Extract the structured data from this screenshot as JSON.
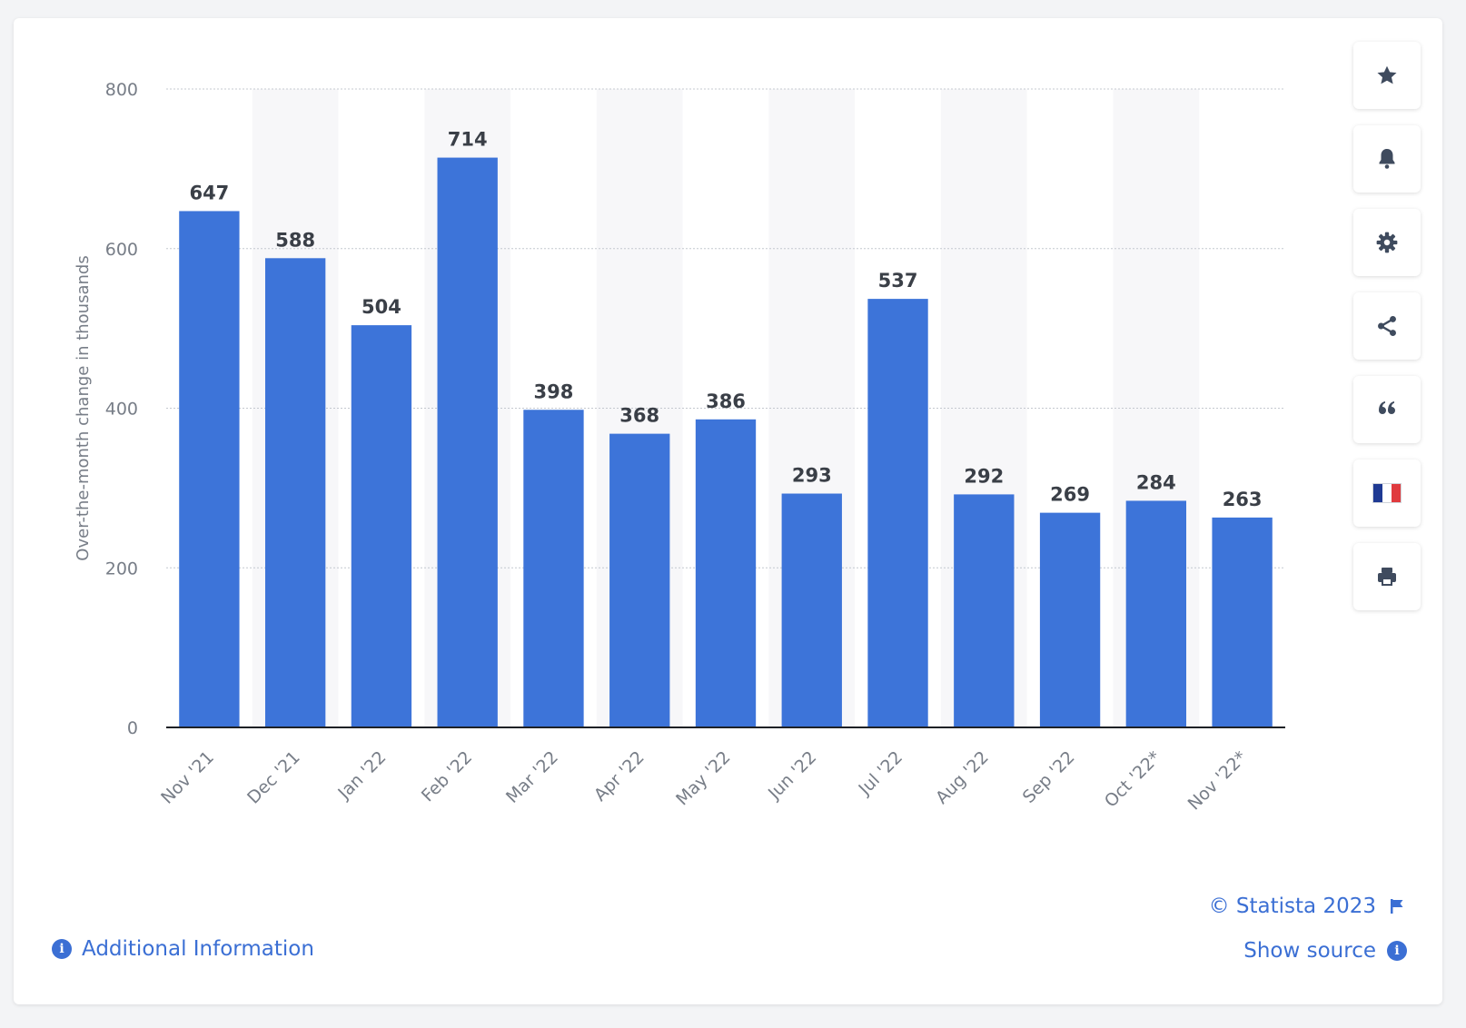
{
  "chart_data": {
    "type": "bar",
    "categories": [
      "Nov '21",
      "Dec '21",
      "Jan '22",
      "Feb '22",
      "Mar '22",
      "Apr '22",
      "May '22",
      "Jun '22",
      "Jul '22",
      "Aug '22",
      "Sep '22",
      "Oct '22*",
      "Nov '22*"
    ],
    "values": [
      647,
      588,
      504,
      714,
      398,
      368,
      386,
      293,
      537,
      292,
      269,
      284,
      263
    ],
    "ylabel": "Over-the-month change in thousands",
    "ylim": [
      0,
      800
    ],
    "yticks": [
      0,
      200,
      400,
      600,
      800
    ],
    "grid": true,
    "bar_color": "#3d74d9"
  },
  "toolbar": {
    "buttons": [
      {
        "icon": "star-icon"
      },
      {
        "icon": "bell-icon"
      },
      {
        "icon": "gear-icon"
      },
      {
        "icon": "share-icon"
      },
      {
        "icon": "quote-icon"
      },
      {
        "icon": "french-flag-icon"
      },
      {
        "icon": "print-icon"
      }
    ]
  },
  "footer": {
    "copyright": "© Statista 2023",
    "show_source": "Show source",
    "additional_info": "Additional Information"
  },
  "colors": {
    "accent": "#3b6fd4",
    "icon": "#3f4b5e"
  }
}
